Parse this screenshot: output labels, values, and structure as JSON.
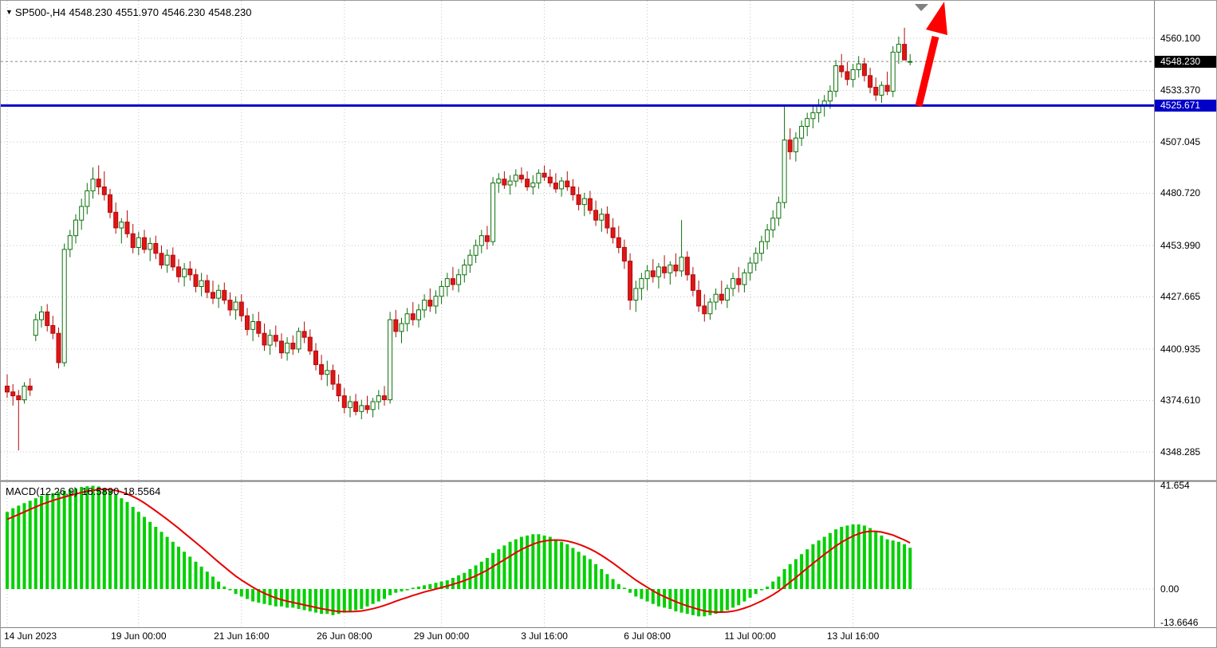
{
  "window": {
    "title": "SP500-,H4"
  },
  "symbol_info": {
    "symbol_period": "SP500-,H4",
    "open": "4548.230",
    "high": "4551.970",
    "low": "4546.230",
    "close": "4548.230"
  },
  "macd_info": {
    "label": "MACD(12,26,9)",
    "macd_value": "16.5890",
    "signal_value": "18.5564"
  },
  "bid": {
    "price": 4548.23,
    "label": "4548.230"
  },
  "level_line": {
    "price": 4525.671,
    "label": "4525.671",
    "color": "#0000c8"
  },
  "annotations": {
    "arrow_color": "#ff0000",
    "marker_color": "#808080"
  },
  "colors": {
    "up_fill": "#ffffff",
    "up_border": "#0a720a",
    "down_fill": "#e01616",
    "down_border": "#b00c0c",
    "histogram": "#00d000",
    "signal": "#e60000",
    "grid": "#c4c4c4",
    "axis_line": "#808080",
    "bid_line": "#888888",
    "level": "#0000c8"
  },
  "price_axis": {
    "labels": [
      {
        "text": "4560.100",
        "value": 4560.1,
        "style": "plain"
      },
      {
        "text": "4548.230",
        "value": 4548.23,
        "style": "bid"
      },
      {
        "text": "4533.370",
        "value": 4533.37,
        "style": "plain"
      },
      {
        "text": "4525.671",
        "value": 4525.671,
        "style": "level"
      },
      {
        "text": "4507.045",
        "value": 4507.045,
        "style": "plain"
      },
      {
        "text": "4480.720",
        "value": 4480.72,
        "style": "plain"
      },
      {
        "text": "4453.990",
        "value": 4453.99,
        "style": "plain"
      },
      {
        "text": "4427.665",
        "value": 4427.665,
        "style": "plain"
      },
      {
        "text": "4400.935",
        "value": 4400.935,
        "style": "plain"
      },
      {
        "text": "4374.610",
        "value": 4374.61,
        "style": "plain"
      },
      {
        "text": "4348.285",
        "value": 4348.285,
        "style": "plain"
      }
    ]
  },
  "macd_axis": {
    "labels": [
      {
        "text": "41.654",
        "value": 41.654
      },
      {
        "text": "0.00",
        "value": 0
      },
      {
        "text": "-13.6646",
        "value": -13.6646
      }
    ]
  },
  "time_axis": {
    "labels": [
      {
        "text": "14 Jun 2023",
        "bar": 0
      },
      {
        "text": "19 Jun 00:00",
        "bar": 23
      },
      {
        "text": "21 Jun 16:00",
        "bar": 41
      },
      {
        "text": "26 Jun 08:00",
        "bar": 59
      },
      {
        "text": "29 Jun 00:00",
        "bar": 76
      },
      {
        "text": "3 Jul 16:00",
        "bar": 94
      },
      {
        "text": "6 Jul 08:00",
        "bar": 112
      },
      {
        "text": "11 Jul 00:00",
        "bar": 130
      },
      {
        "text": "13 Jul 16:00",
        "bar": 148
      }
    ]
  },
  "chart_data": {
    "type": "candlestick",
    "symbol": "SP500-",
    "timeframe": "H4",
    "title": "SP500-,H4 with MACD(12,26,9)",
    "y_range": [
      4348.285,
      4560.1
    ],
    "macd_range": [
      -13.6646,
      41.654
    ],
    "ohlc": [
      [
        4382,
        4388,
        4376,
        4379
      ],
      [
        4379,
        4383,
        4372,
        4377
      ],
      [
        4377,
        4380,
        4349,
        4375
      ],
      [
        4375,
        4384,
        4373,
        4382
      ],
      [
        4382,
        4386,
        4377,
        4380
      ],
      [
        4408,
        4419,
        4405,
        4416
      ],
      [
        4416,
        4423,
        4412,
        4420
      ],
      [
        4420,
        4424,
        4410,
        4413
      ],
      [
        4413,
        4418,
        4406,
        4409
      ],
      [
        4409,
        4412,
        4391,
        4394
      ],
      [
        4394,
        4455,
        4392,
        4452
      ],
      [
        4452,
        4462,
        4448,
        4459
      ],
      [
        4459,
        4470,
        4455,
        4467
      ],
      [
        4467,
        4478,
        4462,
        4474
      ],
      [
        4474,
        4486,
        4470,
        4482
      ],
      [
        4482,
        4494,
        4478,
        4488
      ],
      [
        4488,
        4495,
        4480,
        4484
      ],
      [
        4484,
        4492,
        4477,
        4480
      ],
      [
        4480,
        4483,
        4468,
        4471
      ],
      [
        4471,
        4476,
        4460,
        4463
      ],
      [
        4463,
        4468,
        4455,
        4466
      ],
      [
        4466,
        4472,
        4458,
        4460
      ],
      [
        4460,
        4465,
        4450,
        4453
      ],
      [
        4453,
        4461,
        4449,
        4458
      ],
      [
        4458,
        4462,
        4450,
        4452
      ],
      [
        4452,
        4458,
        4446,
        4455
      ],
      [
        4455,
        4459,
        4447,
        4450
      ],
      [
        4450,
        4454,
        4442,
        4444
      ],
      [
        4444,
        4452,
        4440,
        4449
      ],
      [
        4449,
        4453,
        4441,
        4443
      ],
      [
        4443,
        4447,
        4435,
        4438
      ],
      [
        4438,
        4445,
        4433,
        4442
      ],
      [
        4442,
        4446,
        4436,
        4439
      ],
      [
        4439,
        4442,
        4430,
        4433
      ],
      [
        4433,
        4440,
        4428,
        4436
      ],
      [
        4436,
        4439,
        4427,
        4430
      ],
      [
        4430,
        4436,
        4424,
        4427
      ],
      [
        4427,
        4434,
        4422,
        4431
      ],
      [
        4431,
        4435,
        4424,
        4426
      ],
      [
        4426,
        4430,
        4418,
        4421
      ],
      [
        4421,
        4428,
        4416,
        4425
      ],
      [
        4425,
        4429,
        4415,
        4418
      ],
      [
        4418,
        4422,
        4408,
        4411
      ],
      [
        4411,
        4419,
        4405,
        4415
      ],
      [
        4415,
        4420,
        4407,
        4409
      ],
      [
        4409,
        4414,
        4400,
        4403
      ],
      [
        4403,
        4411,
        4398,
        4408
      ],
      [
        4408,
        4413,
        4402,
        4405
      ],
      [
        4405,
        4409,
        4396,
        4399
      ],
      [
        4399,
        4407,
        4395,
        4404
      ],
      [
        4404,
        4408,
        4398,
        4401
      ],
      [
        4401,
        4412,
        4399,
        4410
      ],
      [
        4410,
        4415,
        4404,
        4407
      ],
      [
        4407,
        4411,
        4398,
        4400
      ],
      [
        4400,
        4404,
        4390,
        4393
      ],
      [
        4393,
        4398,
        4385,
        4388
      ],
      [
        4388,
        4395,
        4382,
        4390
      ],
      [
        4390,
        4393,
        4380,
        4383
      ],
      [
        4383,
        4388,
        4374,
        4377
      ],
      [
        4377,
        4381,
        4368,
        4371
      ],
      [
        4371,
        4377,
        4366,
        4374
      ],
      [
        4374,
        4378,
        4367,
        4369
      ],
      [
        4369,
        4375,
        4365,
        4372
      ],
      [
        4372,
        4377,
        4368,
        4370
      ],
      [
        4370,
        4376,
        4366,
        4374
      ],
      [
        4374,
        4380,
        4370,
        4377
      ],
      [
        4377,
        4382,
        4372,
        4375
      ],
      [
        4375,
        4420,
        4373,
        4416
      ],
      [
        4416,
        4421,
        4407,
        4410
      ],
      [
        4410,
        4417,
        4404,
        4414
      ],
      [
        4414,
        4422,
        4410,
        4419
      ],
      [
        4419,
        4425,
        4413,
        4416
      ],
      [
        4416,
        4424,
        4412,
        4421
      ],
      [
        4421,
        4429,
        4417,
        4426
      ],
      [
        4426,
        4432,
        4420,
        4423
      ],
      [
        4423,
        4431,
        4419,
        4428
      ],
      [
        4428,
        4436,
        4424,
        4433
      ],
      [
        4433,
        4440,
        4428,
        4437
      ],
      [
        4437,
        4443,
        4431,
        4434
      ],
      [
        4434,
        4442,
        4430,
        4439
      ],
      [
        4439,
        4447,
        4435,
        4444
      ],
      [
        4444,
        4452,
        4440,
        4449
      ],
      [
        4449,
        4457,
        4445,
        4454
      ],
      [
        4454,
        4462,
        4450,
        4459
      ],
      [
        4459,
        4464,
        4452,
        4456
      ],
      [
        4456,
        4489,
        4454,
        4486
      ],
      [
        4486,
        4491,
        4481,
        4488
      ],
      [
        4488,
        4492,
        4483,
        4485
      ],
      [
        4485,
        4490,
        4480,
        4487
      ],
      [
        4487,
        4493,
        4484,
        4490
      ],
      [
        4490,
        4494,
        4486,
        4488
      ],
      [
        4488,
        4492,
        4482,
        4484
      ],
      [
        4484,
        4490,
        4480,
        4486
      ],
      [
        4486,
        4493,
        4483,
        4491
      ],
      [
        4491,
        4495,
        4487,
        4489
      ],
      [
        4489,
        4493,
        4484,
        4486
      ],
      [
        4486,
        4491,
        4481,
        4483
      ],
      [
        4483,
        4489,
        4479,
        4487
      ],
      [
        4487,
        4492,
        4482,
        4484
      ],
      [
        4484,
        4488,
        4477,
        4480
      ],
      [
        4480,
        4484,
        4472,
        4475
      ],
      [
        4475,
        4481,
        4469,
        4478
      ],
      [
        4478,
        4482,
        4470,
        4472
      ],
      [
        4472,
        4477,
        4464,
        4467
      ],
      [
        4467,
        4473,
        4461,
        4470
      ],
      [
        4470,
        4474,
        4460,
        4463
      ],
      [
        4463,
        4468,
        4455,
        4458
      ],
      [
        4458,
        4464,
        4450,
        4453
      ],
      [
        4453,
        4457,
        4442,
        4446
      ],
      [
        4446,
        4450,
        4421,
        4426
      ],
      [
        4426,
        4436,
        4420,
        4432
      ],
      [
        4432,
        4440,
        4426,
        4437
      ],
      [
        4437,
        4444,
        4431,
        4441
      ],
      [
        4441,
        4447,
        4435,
        4438
      ],
      [
        4438,
        4445,
        4432,
        4443
      ],
      [
        4443,
        4449,
        4437,
        4440
      ],
      [
        4440,
        4446,
        4434,
        4444
      ],
      [
        4444,
        4450,
        4438,
        4441
      ],
      [
        4441,
        4467,
        4438,
        4448
      ],
      [
        4448,
        4451,
        4436,
        4439
      ],
      [
        4439,
        4443,
        4428,
        4431
      ],
      [
        4431,
        4436,
        4420,
        4423
      ],
      [
        4423,
        4429,
        4415,
        4419
      ],
      [
        4419,
        4427,
        4416,
        4425
      ],
      [
        4425,
        4432,
        4421,
        4429
      ],
      [
        4429,
        4436,
        4424,
        4426
      ],
      [
        4426,
        4434,
        4422,
        4432
      ],
      [
        4432,
        4440,
        4428,
        4437
      ],
      [
        4437,
        4443,
        4430,
        4434
      ],
      [
        4434,
        4442,
        4430,
        4440
      ],
      [
        4440,
        4448,
        4436,
        4445
      ],
      [
        4445,
        4453,
        4441,
        4450
      ],
      [
        4450,
        4459,
        4446,
        4456
      ],
      [
        4456,
        4465,
        4452,
        4462
      ],
      [
        4462,
        4472,
        4458,
        4468
      ],
      [
        4468,
        4479,
        4464,
        4476
      ],
      [
        4476,
        4526,
        4473,
        4508
      ],
      [
        4508,
        4514,
        4498,
        4502
      ],
      [
        4502,
        4512,
        4497,
        4509
      ],
      [
        4509,
        4518,
        4505,
        4515
      ],
      [
        4515,
        4522,
        4510,
        4519
      ],
      [
        4519,
        4526,
        4514,
        4522
      ],
      [
        4522,
        4529,
        4517,
        4526
      ],
      [
        4526,
        4531,
        4520,
        4528
      ],
      [
        4528,
        4536,
        4524,
        4533
      ],
      [
        4533,
        4549,
        4530,
        4546
      ],
      [
        4546,
        4552,
        4540,
        4543
      ],
      [
        4543,
        4548,
        4536,
        4539
      ],
      [
        4539,
        4547,
        4535,
        4544
      ],
      [
        4544,
        4551,
        4540,
        4547
      ],
      [
        4547,
        4550,
        4538,
        4541
      ],
      [
        4541,
        4545,
        4532,
        4535
      ],
      [
        4535,
        4540,
        4528,
        4531
      ],
      [
        4531,
        4538,
        4527,
        4536
      ],
      [
        4536,
        4543,
        4531,
        4533
      ],
      [
        4533,
        4556,
        4530,
        4553
      ],
      [
        4553,
        4561,
        4547,
        4557
      ],
      [
        4557,
        4565.5,
        4551,
        4549
      ],
      [
        4548.23,
        4551.97,
        4546.23,
        4548.23
      ]
    ],
    "macd": {
      "params": "12,26,9",
      "histogram": [
        31,
        32.5,
        33.5,
        34.5,
        35.5,
        36.5,
        37.5,
        38,
        38.5,
        39,
        39.5,
        40,
        40.5,
        41,
        41.3,
        41.5,
        41.2,
        40.5,
        39.5,
        38,
        36.5,
        35,
        33,
        31,
        29,
        27,
        25,
        23,
        21,
        19,
        17,
        15,
        13,
        11,
        9,
        7,
        5,
        3,
        1,
        -0.5,
        -2,
        -3,
        -4,
        -5,
        -5.5,
        -6,
        -6.5,
        -7,
        -7,
        -7.5,
        -7.5,
        -8,
        -8.5,
        -9,
        -9.5,
        -10,
        -10,
        -10.5,
        -10,
        -9.5,
        -9,
        -8.5,
        -8,
        -7,
        -6,
        -5,
        -4,
        -2.5,
        -1.5,
        -1,
        -0.5,
        0.5,
        1,
        1.5,
        2,
        2.5,
        3,
        3.5,
        4.5,
        5.5,
        6.5,
        8,
        9.5,
        11,
        12.5,
        14.5,
        16,
        17.5,
        19,
        20,
        21,
        21.5,
        22,
        22,
        21.5,
        21,
        20,
        19,
        18,
        16.5,
        15,
        13.5,
        12,
        10,
        8,
        6,
        4,
        2,
        0.5,
        -1.5,
        -3,
        -4,
        -5,
        -6,
        -7,
        -7.5,
        -8,
        -9,
        -9.5,
        -10,
        -10.5,
        -11,
        -11,
        -10.5,
        -10,
        -9.5,
        -8.5,
        -7.5,
        -6.5,
        -5,
        -3.5,
        -2,
        -0.5,
        1,
        3,
        5,
        8,
        10,
        12,
        14,
        16,
        18,
        19.5,
        21,
        22.5,
        24,
        25,
        25.5,
        26,
        26,
        25.5,
        24.5,
        23,
        21.5,
        20,
        19.5,
        19,
        18,
        16.589
      ],
      "signal": [
        28,
        29,
        30,
        31,
        32,
        33,
        34,
        34.8,
        35.6,
        36.3,
        37,
        37.6,
        38.2,
        38.8,
        39.3,
        39.7,
        40,
        40.1,
        40,
        39.6,
        39,
        38.2,
        37.2,
        36,
        34.6,
        33,
        31.4,
        29.7,
        28,
        26.2,
        24.4,
        22.5,
        20.6,
        18.7,
        16.8,
        14.8,
        12.8,
        10.8,
        8.9,
        7,
        5.2,
        3.6,
        2.1,
        0.7,
        -0.6,
        -1.7,
        -2.7,
        -3.6,
        -4.3,
        -4.9,
        -5.4,
        -5.9,
        -6.4,
        -6.9,
        -7.4,
        -7.9,
        -8.3,
        -8.7,
        -9,
        -9.1,
        -9.1,
        -9,
        -8.8,
        -8.4,
        -7.9,
        -7.3,
        -6.6,
        -5.8,
        -4.9,
        -4.1,
        -3.4,
        -2.6,
        -1.9,
        -1.2,
        -0.6,
        0,
        0.6,
        1.2,
        1.9,
        2.6,
        3.4,
        4.3,
        5.3,
        6.4,
        7.6,
        9,
        10.4,
        11.8,
        13.2,
        14.6,
        15.9,
        17,
        18,
        18.8,
        19.3,
        19.6,
        19.7,
        19.6,
        19.3,
        18.7,
        18,
        17.1,
        16.1,
        14.9,
        13.5,
        12,
        10.4,
        8.7,
        7,
        5.3,
        3.6,
        2.1,
        0.7,
        -0.7,
        -2,
        -3.1,
        -4.1,
        -5.1,
        -6,
        -6.8,
        -7.5,
        -8.2,
        -8.8,
        -9.1,
        -9.3,
        -9.3,
        -9.2,
        -8.9,
        -8.4,
        -7.7,
        -6.9,
        -5.9,
        -4.8,
        -3.6,
        -2.3,
        -0.8,
        1,
        2.8,
        4.6,
        6.5,
        8.4,
        10.3,
        12.1,
        13.9,
        15.6,
        17.3,
        18.8,
        20.1,
        21.3,
        22.2,
        22.9,
        23.2,
        23.2,
        22.9,
        22.3,
        21.7,
        20.7,
        19.7,
        18.5564
      ]
    }
  }
}
